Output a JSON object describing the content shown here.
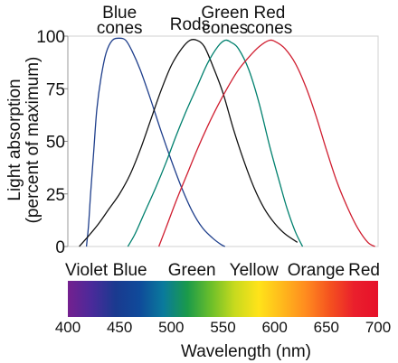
{
  "chart_data": {
    "type": "line",
    "title": "",
    "xlabel": "Wavelength (nm)",
    "ylabel_line1": "Light absorption",
    "ylabel_line2": "(percent of maximum)",
    "xlim": [
      400,
      700
    ],
    "ylim": [
      0,
      100
    ],
    "x_ticks": [
      400,
      450,
      500,
      550,
      600,
      650,
      700
    ],
    "y_ticks": [
      0,
      25,
      50,
      75,
      100
    ],
    "grid": false,
    "series": [
      {
        "name": "Blue cones",
        "label_lines": [
          "Blue",
          "cones"
        ],
        "color": "#1f3f8c",
        "points": [
          [
            418,
            0
          ],
          [
            420,
            10
          ],
          [
            422,
            25
          ],
          [
            425,
            45
          ],
          [
            428,
            65
          ],
          [
            432,
            80
          ],
          [
            437,
            92
          ],
          [
            443,
            98
          ],
          [
            450,
            99
          ],
          [
            456,
            98
          ],
          [
            462,
            93
          ],
          [
            470,
            84
          ],
          [
            480,
            70
          ],
          [
            490,
            55
          ],
          [
            500,
            41
          ],
          [
            510,
            28
          ],
          [
            520,
            17
          ],
          [
            530,
            9
          ],
          [
            540,
            4
          ],
          [
            548,
            1
          ],
          [
            552,
            0
          ]
        ]
      },
      {
        "name": "Rods",
        "label_lines": [
          "Rods"
        ],
        "color": "#111111",
        "points": [
          [
            411,
            0
          ],
          [
            420,
            5
          ],
          [
            430,
            11
          ],
          [
            440,
            18
          ],
          [
            450,
            25
          ],
          [
            460,
            34
          ],
          [
            470,
            46
          ],
          [
            480,
            60
          ],
          [
            490,
            74
          ],
          [
            500,
            86
          ],
          [
            510,
            94
          ],
          [
            518,
            98
          ],
          [
            525,
            98
          ],
          [
            532,
            95
          ],
          [
            540,
            86
          ],
          [
            550,
            73
          ],
          [
            560,
            56
          ],
          [
            570,
            41
          ],
          [
            580,
            28
          ],
          [
            590,
            18
          ],
          [
            600,
            11
          ],
          [
            610,
            6
          ],
          [
            622,
            2
          ]
        ]
      },
      {
        "name": "Green cones",
        "label_lines": [
          "Green",
          "cones"
        ],
        "color": "#00806e",
        "points": [
          [
            458,
            0
          ],
          [
            465,
            6
          ],
          [
            475,
            17
          ],
          [
            485,
            28
          ],
          [
            495,
            40
          ],
          [
            505,
            53
          ],
          [
            515,
            65
          ],
          [
            525,
            76
          ],
          [
            535,
            87
          ],
          [
            545,
            95
          ],
          [
            552,
            98
          ],
          [
            558,
            97
          ],
          [
            565,
            94
          ],
          [
            575,
            84
          ],
          [
            585,
            68
          ],
          [
            595,
            48
          ],
          [
            605,
            30
          ],
          [
            612,
            18
          ],
          [
            620,
            7
          ],
          [
            627,
            0
          ]
        ]
      },
      {
        "name": "Red cones",
        "label_lines": [
          "Red",
          "cones"
        ],
        "color": "#d01e30",
        "points": [
          [
            488,
            0
          ],
          [
            495,
            9
          ],
          [
            505,
            22
          ],
          [
            515,
            34
          ],
          [
            525,
            46
          ],
          [
            535,
            57
          ],
          [
            545,
            67
          ],
          [
            555,
            76
          ],
          [
            565,
            84
          ],
          [
            575,
            90
          ],
          [
            585,
            95
          ],
          [
            595,
            98
          ],
          [
            602,
            97
          ],
          [
            610,
            94
          ],
          [
            620,
            87
          ],
          [
            630,
            76
          ],
          [
            640,
            62
          ],
          [
            650,
            46
          ],
          [
            660,
            31
          ],
          [
            670,
            19
          ],
          [
            680,
            9
          ],
          [
            690,
            2
          ],
          [
            697,
            0
          ]
        ]
      }
    ],
    "color_names": [
      "Violet",
      "Blue",
      "Green",
      "Yellow",
      "Orange",
      "Red"
    ],
    "spectrum_colors": [
      "#74208f",
      "#4a2a9a",
      "#1a3a8f",
      "#0f4a9a",
      "#0a7a9c",
      "#1a9a4a",
      "#6cbf2a",
      "#c8da1e",
      "#ffe31a",
      "#ffb81c",
      "#ff8a1f",
      "#f4511f",
      "#ea1f2c",
      "#e6112a"
    ]
  }
}
